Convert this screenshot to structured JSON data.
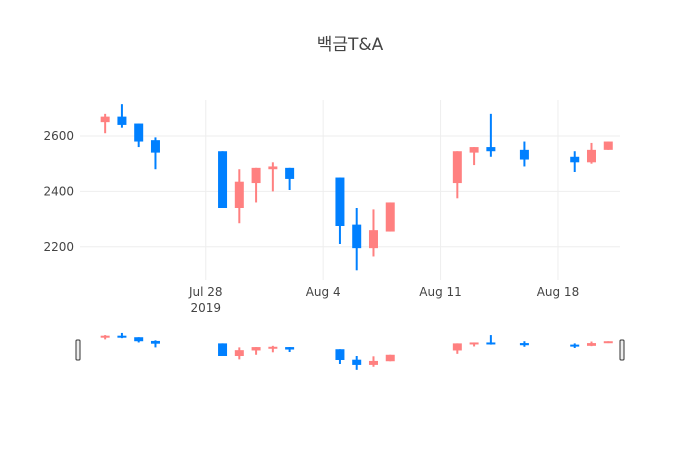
{
  "chart_data": {
    "type": "candlestick",
    "title": "백금T&A",
    "xlabel": "",
    "ylabel": "",
    "ylim": [
      2080,
      2730
    ],
    "yticks": [
      2200,
      2400,
      2600
    ],
    "xticks": [
      {
        "date": "2019-07-28",
        "label": "Jul 28",
        "sublabel": "2019"
      },
      {
        "date": "2019-08-04",
        "label": "Aug 4",
        "sublabel": ""
      },
      {
        "date": "2019-08-11",
        "label": "Aug 11",
        "sublabel": ""
      },
      {
        "date": "2019-08-18",
        "label": "Aug 18",
        "sublabel": ""
      }
    ],
    "x_range": [
      "2019-07-21",
      "2019-08-21"
    ],
    "increasing_color": "#ff8080",
    "decreasing_color": "#0080ff",
    "rangeslider": true,
    "candles": [
      {
        "date": "2019-07-22",
        "open": 2650,
        "high": 2680,
        "low": 2610,
        "close": 2670
      },
      {
        "date": "2019-07-23",
        "open": 2670,
        "high": 2715,
        "low": 2630,
        "close": 2640
      },
      {
        "date": "2019-07-24",
        "open": 2645,
        "high": 2645,
        "low": 2560,
        "close": 2580
      },
      {
        "date": "2019-07-25",
        "open": 2585,
        "high": 2595,
        "low": 2480,
        "close": 2540
      },
      {
        "date": "2019-07-29",
        "open": 2545,
        "high": 2545,
        "low": 2340,
        "close": 2340
      },
      {
        "date": "2019-07-30",
        "open": 2340,
        "high": 2480,
        "low": 2285,
        "close": 2435
      },
      {
        "date": "2019-07-31",
        "open": 2430,
        "high": 2485,
        "low": 2360,
        "close": 2485
      },
      {
        "date": "2019-08-01",
        "open": 2480,
        "high": 2505,
        "low": 2400,
        "close": 2490
      },
      {
        "date": "2019-08-02",
        "open": 2485,
        "high": 2485,
        "low": 2405,
        "close": 2445
      },
      {
        "date": "2019-08-05",
        "open": 2450,
        "high": 2450,
        "low": 2210,
        "close": 2275
      },
      {
        "date": "2019-08-06",
        "open": 2280,
        "high": 2340,
        "low": 2115,
        "close": 2195
      },
      {
        "date": "2019-08-07",
        "open": 2195,
        "high": 2335,
        "low": 2165,
        "close": 2260
      },
      {
        "date": "2019-08-08",
        "open": 2255,
        "high": 2360,
        "low": 2255,
        "close": 2360
      },
      {
        "date": "2019-08-12",
        "open": 2430,
        "high": 2545,
        "low": 2375,
        "close": 2545
      },
      {
        "date": "2019-08-13",
        "open": 2540,
        "high": 2560,
        "low": 2495,
        "close": 2560
      },
      {
        "date": "2019-08-14",
        "open": 2560,
        "high": 2680,
        "low": 2525,
        "close": 2545
      },
      {
        "date": "2019-08-16",
        "open": 2550,
        "high": 2580,
        "low": 2490,
        "close": 2515
      },
      {
        "date": "2019-08-19",
        "open": 2525,
        "high": 2545,
        "low": 2470,
        "close": 2505
      },
      {
        "date": "2019-08-20",
        "open": 2505,
        "high": 2575,
        "low": 2500,
        "close": 2550
      },
      {
        "date": "2019-08-21",
        "open": 2550,
        "high": 2580,
        "low": 2550,
        "close": 2580
      }
    ]
  }
}
